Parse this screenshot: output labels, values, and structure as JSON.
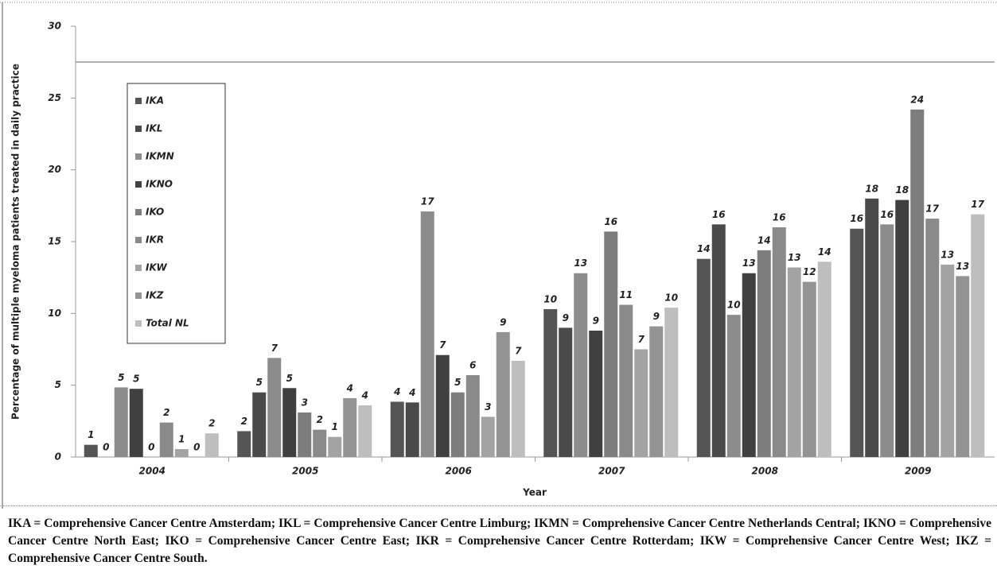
{
  "chart_data": {
    "type": "bar",
    "x_label": "Year",
    "y_label": "Percentage of multiple myeloma patients treated in daily practice",
    "categories": [
      "2004",
      "2005",
      "2006",
      "2007",
      "2008",
      "2009"
    ],
    "ylim": [
      0,
      30
    ],
    "yticks": [
      0,
      5,
      10,
      15,
      20,
      25,
      30
    ],
    "legend": "upper left",
    "series": [
      {
        "name": "IKA",
        "color": "#555555",
        "values": [
          0.85,
          1.8,
          3.85,
          10.3,
          13.8,
          15.9
        ],
        "value_labels": [
          "1",
          "2",
          "4",
          "10",
          "14",
          "16"
        ]
      },
      {
        "name": "IKL",
        "color": "#4a4a4a",
        "values": [
          0,
          4.5,
          3.8,
          9.0,
          16.2,
          18.0
        ],
        "value_labels": [
          "0",
          "5",
          "4",
          "9",
          "16",
          "18"
        ]
      },
      {
        "name": "IKMN",
        "color": "#8c8c8c",
        "values": [
          4.85,
          6.9,
          17.1,
          12.8,
          9.9,
          16.2
        ],
        "value_labels": [
          "5",
          "7",
          "17",
          "13",
          "10",
          "16"
        ]
      },
      {
        "name": "IKNO",
        "color": "#404040",
        "values": [
          4.75,
          4.8,
          7.1,
          8.8,
          12.8,
          17.9
        ],
        "value_labels": [
          "5",
          "5",
          "7",
          "9",
          "13",
          "18"
        ]
      },
      {
        "name": "IKO",
        "color": "#7d7d7d",
        "values": [
          0,
          3.1,
          4.5,
          15.7,
          14.4,
          24.2
        ],
        "value_labels": [
          "0",
          "3",
          "5",
          "16",
          "14",
          "24"
        ]
      },
      {
        "name": "IKR",
        "color": "#8a8a8a",
        "values": [
          2.4,
          1.9,
          5.7,
          10.6,
          16.0,
          16.6
        ],
        "value_labels": [
          "2",
          "2",
          "6",
          "11",
          "16",
          "17"
        ]
      },
      {
        "name": "IKW",
        "color": "#a3a3a3",
        "values": [
          0.55,
          1.4,
          2.8,
          7.5,
          13.2,
          13.4
        ],
        "value_labels": [
          "1",
          "1",
          "3",
          "7",
          "13",
          "13"
        ]
      },
      {
        "name": "IKZ",
        "color": "#939393",
        "values": [
          0,
          4.1,
          8.7,
          9.1,
          12.2,
          12.6
        ],
        "value_labels": [
          "0",
          "4",
          "9",
          "9",
          "12",
          "13"
        ]
      },
      {
        "name": "Total NL",
        "color": "#bebebe",
        "values": [
          1.65,
          3.6,
          6.7,
          10.4,
          13.6,
          16.9
        ],
        "value_labels": [
          "2",
          "4",
          "7",
          "10",
          "14",
          "17"
        ]
      }
    ],
    "caption": "IKA = Comprehensive Cancer Centre Amsterdam; IKL = Comprehensive Cancer Centre Limburg; IKMN = Comprehensive Cancer Centre Netherlands Central; IKNO = Comprehensive Cancer Centre North East; IKO = Comprehensive Cancer Centre East; IKR = Comprehensive Cancer Centre Rotterdam; IKW = Comprehensive Cancer Centre West; IKZ = Comprehensive Cancer Centre South."
  }
}
